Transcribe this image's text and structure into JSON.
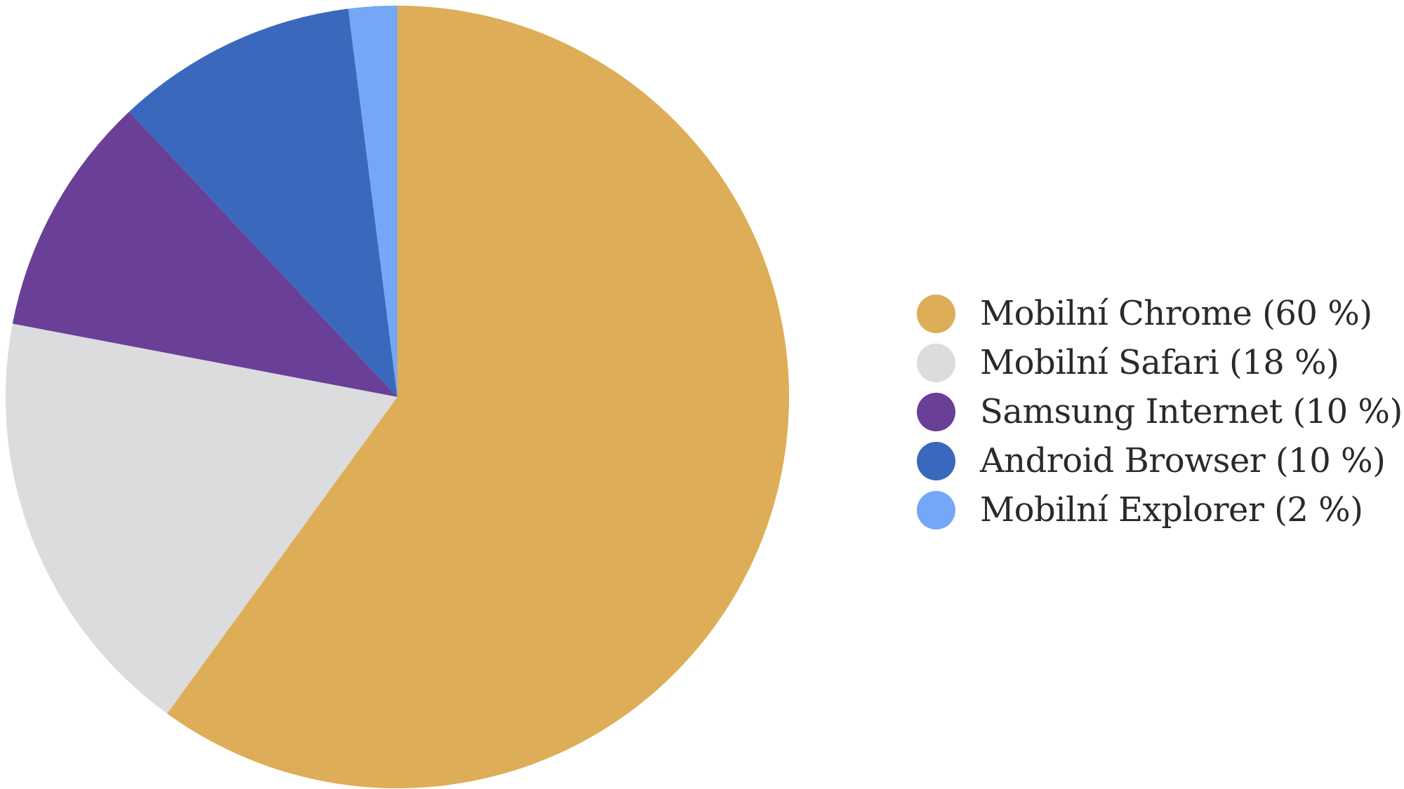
{
  "chart_data": {
    "type": "pie",
    "title": "",
    "slices": [
      {
        "label": "Mobilní Chrome (60 %)",
        "value": 60,
        "color": "#ddae57"
      },
      {
        "label": "Mobilní Safari (18 %)",
        "value": 18,
        "color": "#dcdcde"
      },
      {
        "label": "Samsung Internet (10 %)",
        "value": 10,
        "color": "#6a3f97"
      },
      {
        "label": "Android Browser (10 %)",
        "value": 10,
        "color": "#3a68bc"
      },
      {
        "label": "Mobilní Explorer (2 %)",
        "value": 2,
        "color": "#74a8f6"
      }
    ],
    "start_angle": "12 o'clock",
    "direction": "clockwise",
    "legend_position": "right"
  }
}
